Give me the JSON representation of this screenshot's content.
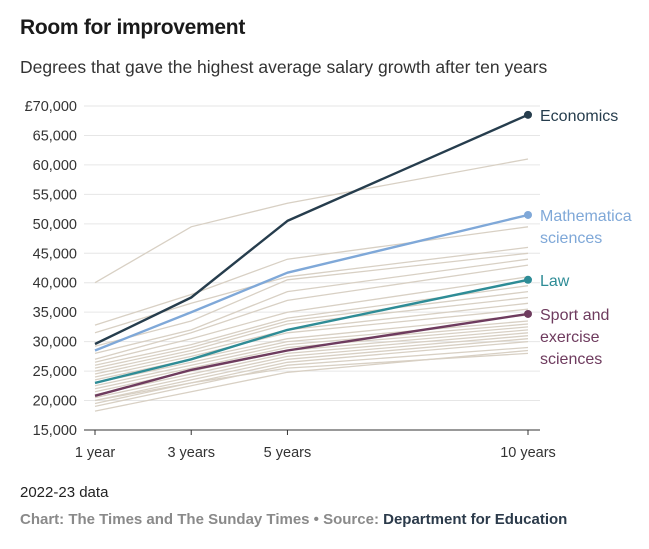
{
  "header": {
    "title": "Room for improvement",
    "subtitle": "Degrees that gave the highest average salary growth after ten years"
  },
  "footer": {
    "note": "2022-23 data",
    "credit_prefix": "Chart: The Times and The Sunday Times • Source: ",
    "credit_source": "Department for Education"
  },
  "chart_data": {
    "type": "line",
    "title": "Room for improvement",
    "subtitle": "Degrees that gave the highest average salary growth after ten years",
    "xlabel": "",
    "ylabel": "",
    "categories": [
      "1 year",
      "3 years",
      "5 years",
      "10 years"
    ],
    "x": [
      1,
      3,
      5,
      10
    ],
    "ylim": [
      15000,
      70000
    ],
    "yticks": [
      15000,
      20000,
      25000,
      30000,
      35000,
      40000,
      45000,
      50000,
      55000,
      60000,
      65000,
      70000
    ],
    "ytick_labels": [
      "15,000",
      "20,000",
      "25,000",
      "30,000",
      "35,000",
      "40,000",
      "45,000",
      "50,000",
      "55,000",
      "60,000",
      "65,000",
      "£70,000"
    ],
    "grid": true,
    "background_color": "#d8d0c4",
    "highlighted_series": [
      {
        "name": "Economics",
        "label_lines": [
          "Economics"
        ],
        "color": "#263d4d",
        "values": [
          29600,
          37500,
          50500,
          68500
        ]
      },
      {
        "name": "Mathematical sciences",
        "label_lines": [
          "Mathematica",
          "sciences"
        ],
        "color": "#7fa8d8",
        "values": [
          28500,
          35000,
          41700,
          51500
        ]
      },
      {
        "name": "Law",
        "label_lines": [
          "Law"
        ],
        "color": "#2e8c96",
        "values": [
          23000,
          27000,
          32000,
          40500
        ]
      },
      {
        "name": "Sport and exercise sciences",
        "label_lines": [
          "Sport and",
          "exercise",
          "sciences"
        ],
        "color": "#6e3b5e",
        "values": [
          20800,
          25200,
          28500,
          34700
        ]
      }
    ],
    "background_series": [
      {
        "values": [
          40000,
          49500,
          53500,
          61000
        ]
      },
      {
        "values": [
          32800,
          38000,
          44000,
          49500
        ]
      },
      {
        "values": [
          31500,
          36500,
          41000,
          46000
        ]
      },
      {
        "values": [
          29200,
          33500,
          40500,
          45000
        ]
      },
      {
        "values": [
          28000,
          32000,
          38500,
          44000
        ]
      },
      {
        "values": [
          27000,
          31500,
          37000,
          43000
        ]
      },
      {
        "values": [
          26500,
          30500,
          35000,
          41000
        ]
      },
      {
        "values": [
          26000,
          29500,
          34000,
          39500
        ]
      },
      {
        "values": [
          25500,
          29000,
          33500,
          38500
        ]
      },
      {
        "values": [
          25000,
          28500,
          33000,
          37500
        ]
      },
      {
        "values": [
          24500,
          28000,
          32000,
          36500
        ]
      },
      {
        "values": [
          24000,
          27500,
          31500,
          35500
        ]
      },
      {
        "values": [
          23500,
          27000,
          30500,
          34500
        ]
      },
      {
        "values": [
          23000,
          26500,
          30000,
          33500
        ]
      },
      {
        "values": [
          22500,
          26000,
          29500,
          33000
        ]
      },
      {
        "values": [
          22000,
          25500,
          29000,
          32500
        ]
      },
      {
        "values": [
          21500,
          25000,
          28500,
          32000
        ]
      },
      {
        "values": [
          21000,
          24500,
          28000,
          31500
        ]
      },
      {
        "values": [
          20500,
          24000,
          27500,
          31000
        ]
      },
      {
        "values": [
          20000,
          23500,
          27000,
          30500
        ]
      },
      {
        "values": [
          19500,
          23000,
          26500,
          30000
        ]
      },
      {
        "values": [
          19000,
          22500,
          26000,
          29000
        ]
      },
      {
        "values": [
          20000,
          23000,
          25500,
          28000
        ]
      },
      {
        "values": [
          18200,
          21500,
          24800,
          28500
        ]
      }
    ]
  }
}
